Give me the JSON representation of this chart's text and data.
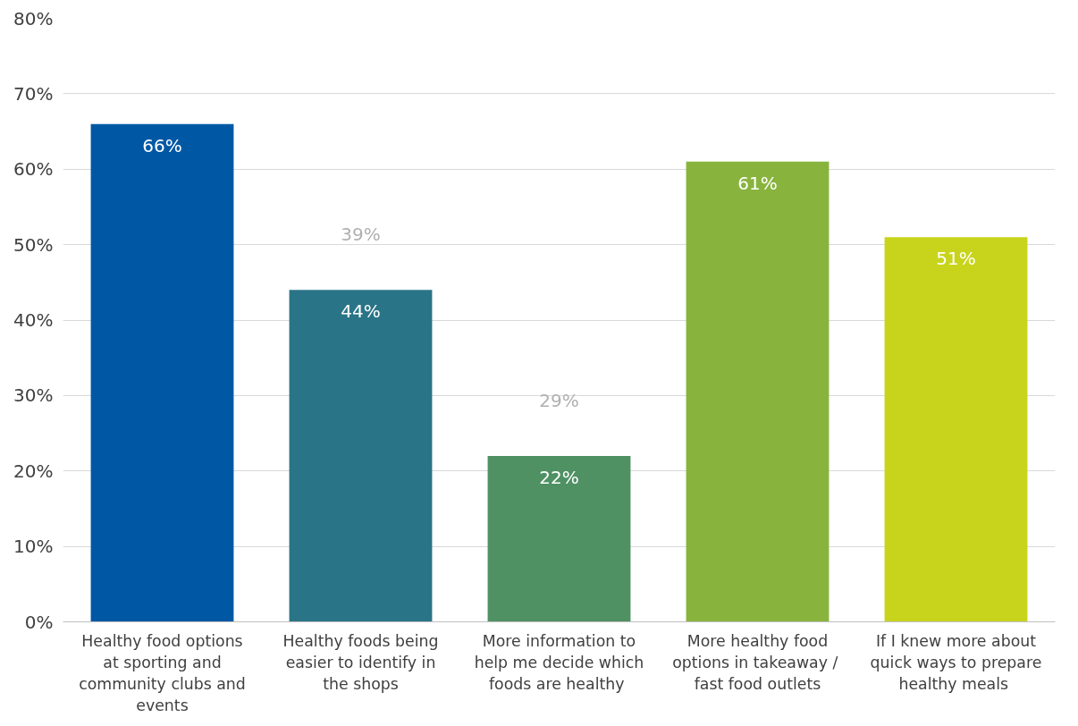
{
  "chart_data": {
    "type": "bar",
    "categories": [
      "Healthy food options at sporting and community clubs and events",
      "Healthy foods being easier to identify in the shops",
      "More information to help me decide which foods  are healthy",
      "More healthy food options  in takeaway / fast food outlets",
      "If I knew more about quick ways to prepare healthy  meals"
    ],
    "values": [
      66,
      44,
      22,
      61,
      51
    ],
    "colors": [
      "#0058a5",
      "#2a7487",
      "#4f9163",
      "#88b43e",
      "#c8d41b"
    ],
    "ylim": [
      0,
      80
    ],
    "yticks": [
      {
        "value": 0,
        "label": "0%"
      },
      {
        "value": 10,
        "label": "10%"
      },
      {
        "value": 20,
        "label": "20%"
      },
      {
        "value": 30,
        "label": "30%"
      },
      {
        "value": 40,
        "label": "40%"
      },
      {
        "value": 50,
        "label": "50%"
      },
      {
        "value": 60,
        "label": "60%"
      },
      {
        "value": 70,
        "label": "70%"
      },
      {
        "value": 80,
        "label": "80%"
      }
    ],
    "value_labels": [
      "66%",
      "44%",
      "22%",
      "61%",
      "51%"
    ],
    "annotations": [
      "39%",
      "29%"
    ],
    "grid": "y"
  }
}
